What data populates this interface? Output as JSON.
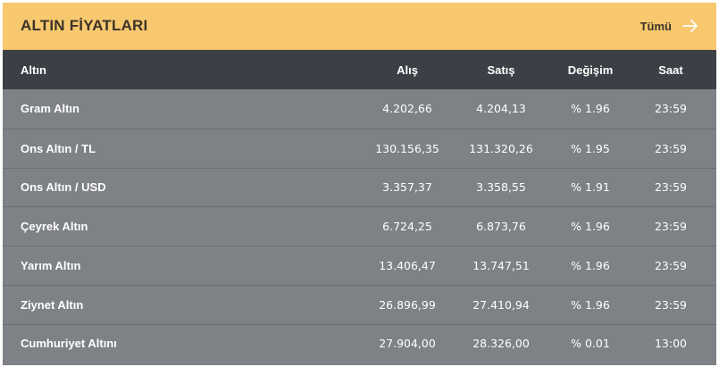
{
  "header": {
    "title": "ALTIN FİYATLARI",
    "see_all_label": "Tümü",
    "see_all_icon": "arrow-right-icon"
  },
  "columns": {
    "name": "Altın",
    "buy": "Alış",
    "sell": "Satış",
    "change": "Değişim",
    "time": "Saat"
  },
  "rows": [
    {
      "name": "Gram Altın",
      "buy": "4.202,66",
      "sell": "4.204,13",
      "change": "% 1.96",
      "time": "23:59"
    },
    {
      "name": "Ons Altın / TL",
      "buy": "130.156,35",
      "sell": "131.320,26",
      "change": "% 1.95",
      "time": "23:59"
    },
    {
      "name": "Ons Altın / USD",
      "buy": "3.357,37",
      "sell": "3.358,55",
      "change": "% 1.91",
      "time": "23:59"
    },
    {
      "name": "Çeyrek Altın",
      "buy": "6.724,25",
      "sell": "6.873,76",
      "change": "% 1.96",
      "time": "23:59"
    },
    {
      "name": "Yarım Altın",
      "buy": "13.406,47",
      "sell": "13.747,51",
      "change": "% 1.96",
      "time": "23:59"
    },
    {
      "name": "Ziynet Altın",
      "buy": "26.896,99",
      "sell": "27.410,94",
      "change": "% 1.96",
      "time": "23:59"
    },
    {
      "name": "Cumhuriyet Altını",
      "buy": "27.904,00",
      "sell": "28.326,00",
      "change": "% 0.01",
      "time": "13:00"
    }
  ],
  "colors": {
    "header_bg": "#f7c86e",
    "table_head_bg": "#3c3f45",
    "row_bg": "#7e8185"
  }
}
